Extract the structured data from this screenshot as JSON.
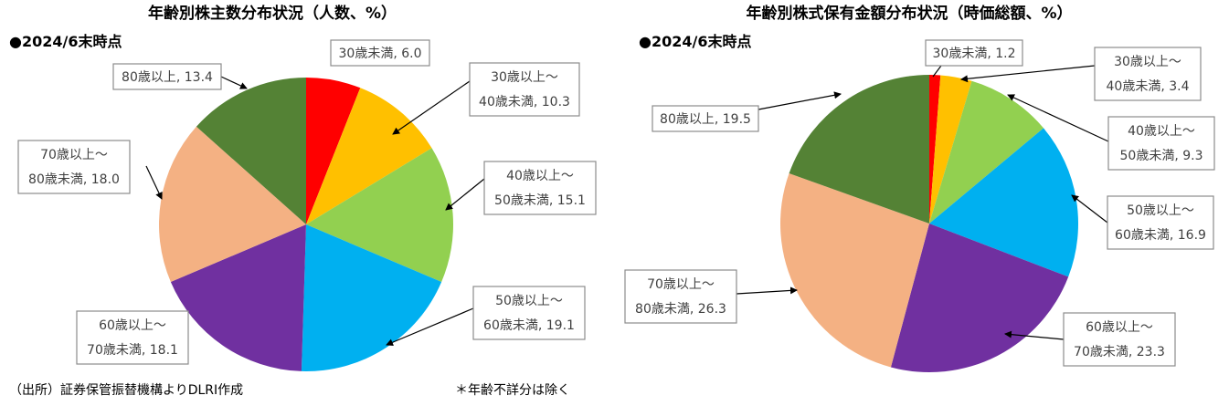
{
  "chart_data": [
    {
      "type": "pie",
      "title": "年齢別株主数分布状況（人数、%）",
      "subtitle": "●2024/6末時点",
      "slices": [
        {
          "label": "30歳未満",
          "value": 6.0,
          "display": "6.0",
          "color": "#ff0000"
        },
        {
          "label": "30歳以上～40歳未満",
          "value": 10.3,
          "display": "10.3",
          "color": "#ffc000"
        },
        {
          "label": "40歳以上～50歳未満",
          "value": 15.1,
          "display": "15.1",
          "color": "#92d050"
        },
        {
          "label": "50歳以上～60歳未満",
          "value": 19.1,
          "display": "19.1",
          "color": "#00b0f0"
        },
        {
          "label": "60歳以上～70歳未満",
          "value": 18.1,
          "display": "18.1",
          "color": "#7030a0"
        },
        {
          "label": "70歳以上～80歳未満",
          "value": 18.0,
          "display": "18.0",
          "color": "#f4b183"
        },
        {
          "label": "80歳以上",
          "value": 13.4,
          "display": "13.4",
          "color": "#548235"
        }
      ],
      "label_lines": [
        [
          "30歳未満, 6.0"
        ],
        [
          "30歳以上～",
          "40歳未満, 10.3"
        ],
        [
          "40歳以上～",
          "50歳未満, 15.1"
        ],
        [
          "50歳以上～",
          "60歳未満, 19.1"
        ],
        [
          "60歳以上～",
          "70歳未満, 18.1"
        ],
        [
          "70歳以上～",
          "80歳未満, 18.0"
        ],
        [
          "80歳以上, 13.4"
        ]
      ]
    },
    {
      "type": "pie",
      "title": "年齢別株式保有金額分布状況（時価総額、%）",
      "subtitle": "●2024/6末時点",
      "slices": [
        {
          "label": "30歳未満",
          "value": 1.2,
          "display": "1.2",
          "color": "#ff0000"
        },
        {
          "label": "30歳以上～40歳未満",
          "value": 3.4,
          "display": "3.4",
          "color": "#ffc000"
        },
        {
          "label": "40歳以上～50歳未満",
          "value": 9.3,
          "display": "9.3",
          "color": "#92d050"
        },
        {
          "label": "50歳以上～60歳未満",
          "value": 16.9,
          "display": "16.9",
          "color": "#00b0f0"
        },
        {
          "label": "60歳以上～70歳未満",
          "value": 23.3,
          "display": "23.3",
          "color": "#7030a0"
        },
        {
          "label": "70歳以上～80歳未満",
          "value": 26.3,
          "display": "26.3",
          "color": "#f4b183"
        },
        {
          "label": "80歳以上",
          "value": 19.5,
          "display": "19.5",
          "color": "#548235"
        }
      ],
      "label_lines": [
        [
          "30歳未満, 1.2"
        ],
        [
          "30歳以上～",
          "40歳未満, 3.4"
        ],
        [
          "40歳以上～",
          "50歳未満, 9.3"
        ],
        [
          "50歳以上～",
          "60歳未満, 16.9"
        ],
        [
          "60歳以上～",
          "70歳未満, 23.3"
        ],
        [
          "70歳以上～",
          "80歳未満, 26.3"
        ],
        [
          "80歳以上, 19.5"
        ]
      ]
    }
  ],
  "footer": {
    "source": "（出所）証券保管振替機構よりDLRI作成",
    "note": "＊年齢不詳分は除く"
  }
}
